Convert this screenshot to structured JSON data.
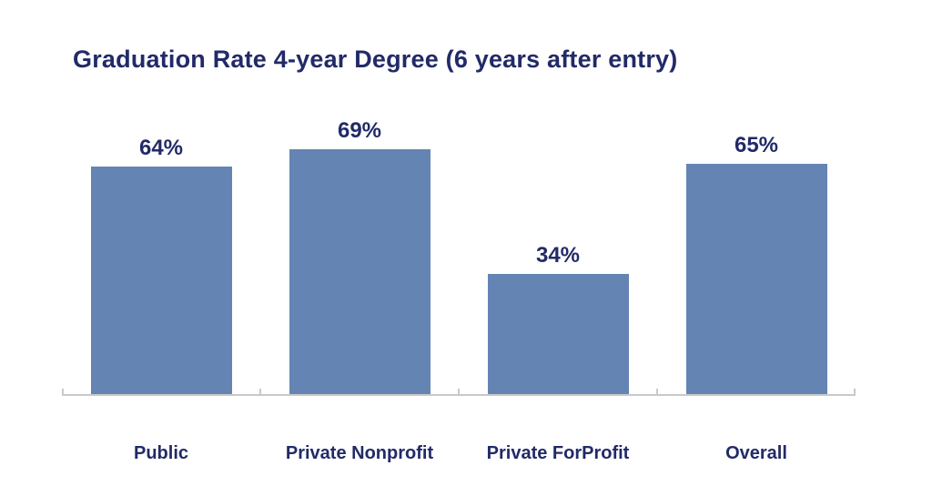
{
  "page": {
    "background": "#ffffff"
  },
  "chart_data": {
    "type": "bar",
    "title": "Graduation Rate 4-year Degree (6 years after entry)",
    "categories": [
      "Public",
      "Private Nonprofit",
      "Private ForProfit",
      "Overall"
    ],
    "values": [
      64,
      69,
      34,
      65
    ],
    "value_labels": [
      "64%",
      "69%",
      "34%",
      "65%"
    ],
    "xlabel": "",
    "ylabel": "",
    "unit": "%",
    "ylim": [
      0,
      100
    ],
    "grid": false,
    "legend": false,
    "bar_color": "#6484b4",
    "text_color": "#222a68",
    "axis_color": "#c9c9c9"
  }
}
